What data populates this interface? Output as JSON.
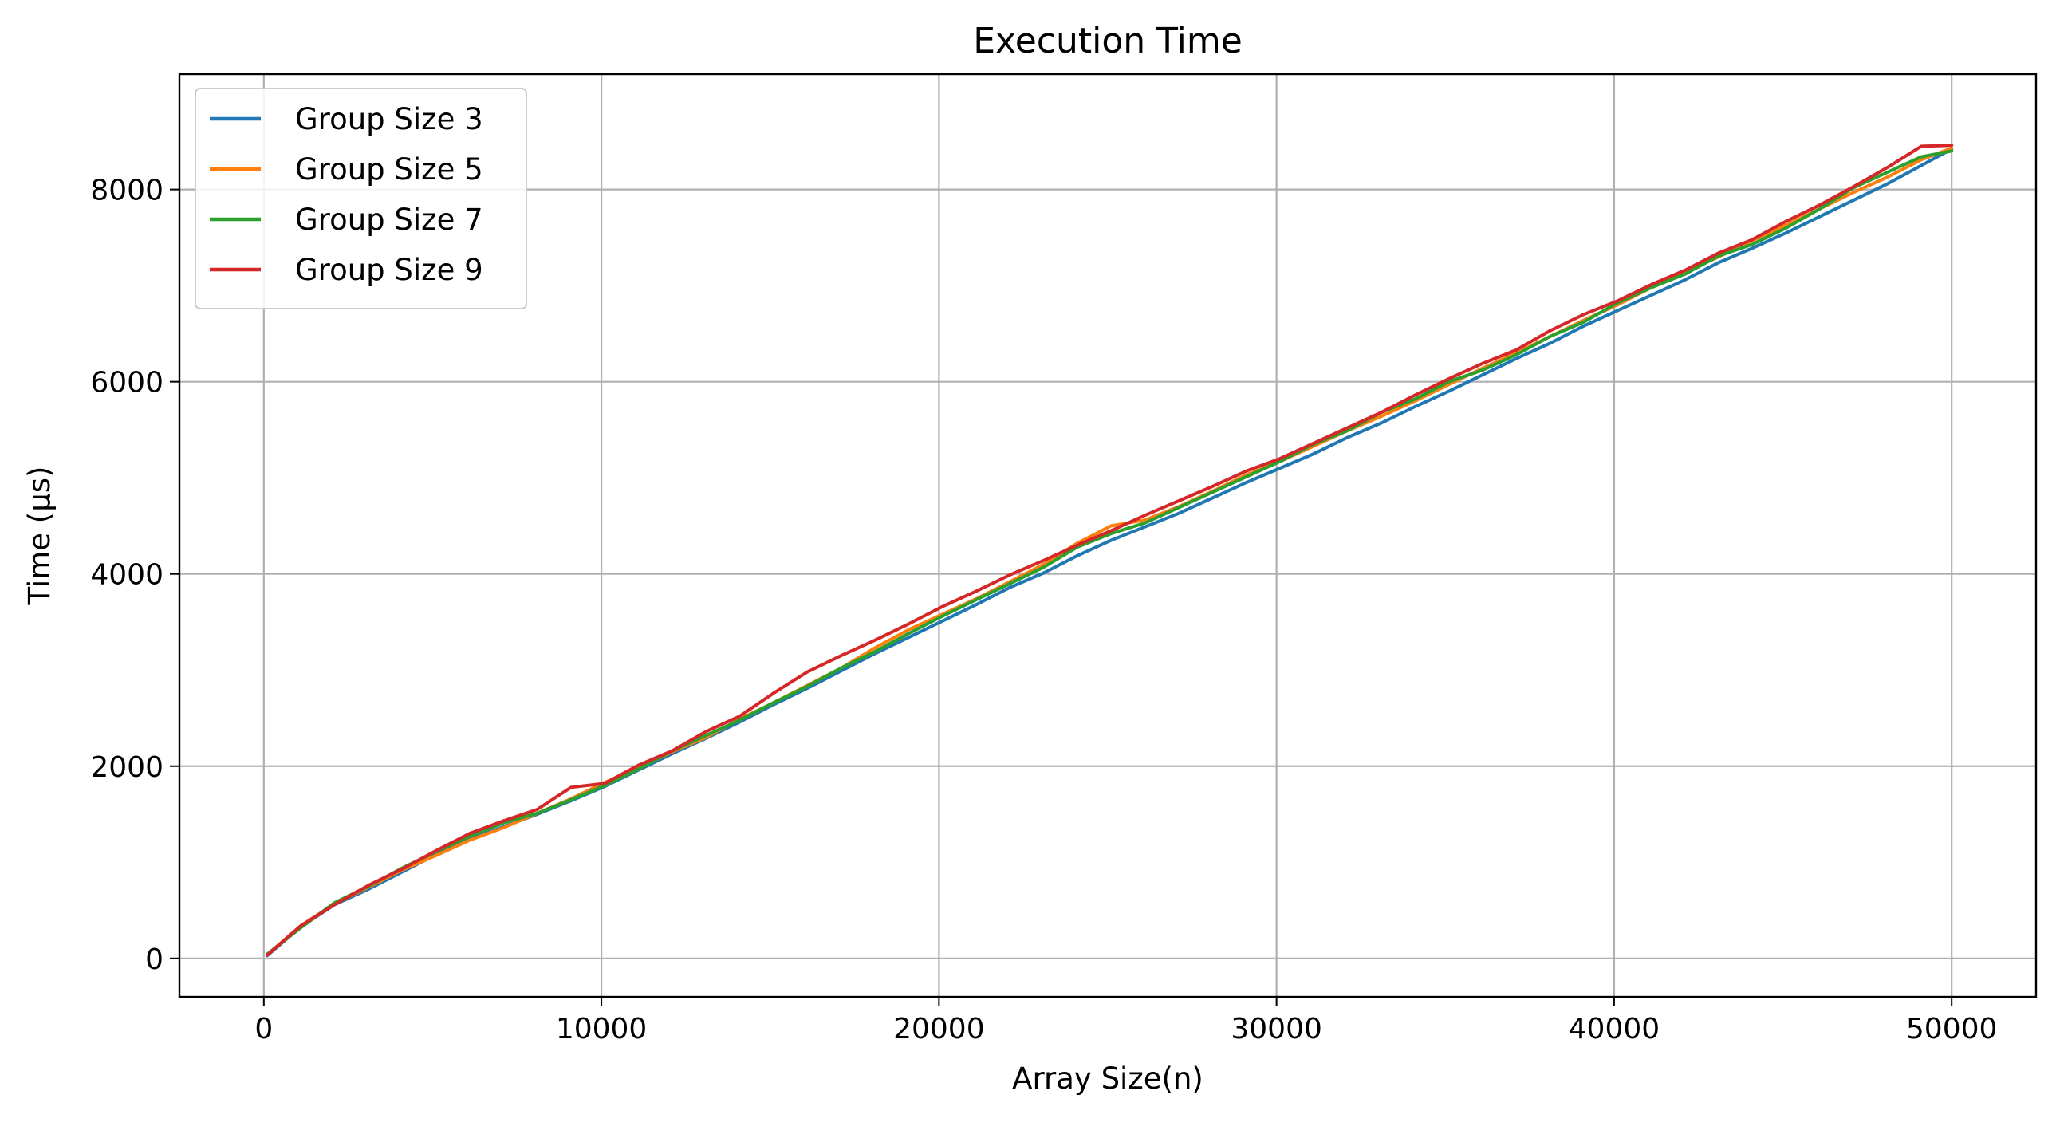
{
  "chart_data": {
    "type": "line",
    "title": "Execution Time",
    "xlabel": "Array Size(n)",
    "ylabel": "Time (µs)",
    "xlim": [
      -2500,
      52500
    ],
    "ylim": [
      -400,
      9200
    ],
    "xticks": [
      0,
      10000,
      20000,
      30000,
      40000,
      50000
    ],
    "xtick_labels": [
      "0",
      "10000",
      "20000",
      "30000",
      "40000",
      "50000"
    ],
    "yticks": [
      0,
      2000,
      4000,
      6000,
      8000
    ],
    "ytick_labels": [
      "0",
      "2000",
      "4000",
      "6000",
      "8000"
    ],
    "grid": true,
    "legend_position": "top-left",
    "x": [
      100,
      1100,
      2100,
      3100,
      4100,
      5100,
      6100,
      7100,
      8100,
      9100,
      10100,
      11100,
      12100,
      13100,
      14100,
      15100,
      16100,
      17100,
      18100,
      19100,
      20100,
      21100,
      22100,
      23100,
      24100,
      25100,
      26100,
      27100,
      28100,
      29100,
      30100,
      31100,
      32100,
      33100,
      34100,
      35100,
      36100,
      37100,
      38100,
      39100,
      40100,
      41100,
      42100,
      43100,
      44100,
      45100,
      46100,
      47100,
      48100,
      49100,
      50000
    ],
    "series": [
      {
        "name": "Group Size 3",
        "color": "#1f77b4",
        "values": [
          30,
          330,
          560,
          720,
          900,
          1080,
          1240,
          1370,
          1500,
          1640,
          1790,
          1960,
          2130,
          2290,
          2460,
          2640,
          2810,
          2990,
          3170,
          3340,
          3510,
          3680,
          3860,
          4010,
          4190,
          4350,
          4490,
          4630,
          4790,
          4950,
          5100,
          5250,
          5420,
          5570,
          5740,
          5900,
          6070,
          6240,
          6400,
          6580,
          6740,
          6900,
          7060,
          7240,
          7390,
          7550,
          7720,
          7890,
          8060,
          8250,
          8420
        ]
      },
      {
        "name": "Group Size 5",
        "color": "#ff7f0e",
        "values": [
          40,
          340,
          570,
          740,
          920,
          1070,
          1230,
          1360,
          1510,
          1660,
          1830,
          1980,
          2150,
          2300,
          2490,
          2660,
          2840,
          3020,
          3230,
          3420,
          3580,
          3740,
          3920,
          4100,
          4320,
          4500,
          4560,
          4700,
          4860,
          5030,
          5170,
          5330,
          5490,
          5640,
          5800,
          5970,
          6140,
          6300,
          6470,
          6640,
          6800,
          6980,
          7140,
          7300,
          7470,
          7630,
          7800,
          7970,
          8130,
          8310,
          8430
        ]
      },
      {
        "name": "Group Size 7",
        "color": "#2ca02c",
        "values": [
          45,
          320,
          580,
          750,
          940,
          1110,
          1270,
          1410,
          1510,
          1650,
          1800,
          1970,
          2160,
          2320,
          2480,
          2660,
          2830,
          3020,
          3190,
          3380,
          3560,
          3730,
          3900,
          4070,
          4280,
          4420,
          4530,
          4690,
          4850,
          5010,
          5170,
          5350,
          5490,
          5680,
          5820,
          6000,
          6120,
          6280,
          6470,
          6620,
          6820,
          6980,
          7120,
          7310,
          7430,
          7600,
          7800,
          8020,
          8180,
          8340,
          8400
        ]
      },
      {
        "name": "Group Size 9",
        "color": "#d62728",
        "values": [
          35,
          340,
          560,
          760,
          930,
          1120,
          1300,
          1430,
          1550,
          1780,
          1820,
          2010,
          2160,
          2360,
          2520,
          2760,
          2980,
          3150,
          3310,
          3480,
          3660,
          3820,
          3990,
          4140,
          4300,
          4450,
          4610,
          4760,
          4910,
          5070,
          5200,
          5360,
          5520,
          5680,
          5860,
          6030,
          6190,
          6330,
          6530,
          6700,
          6840,
          7010,
          7160,
          7340,
          7480,
          7670,
          7840,
          8030,
          8230,
          8450,
          8460
        ]
      }
    ]
  }
}
